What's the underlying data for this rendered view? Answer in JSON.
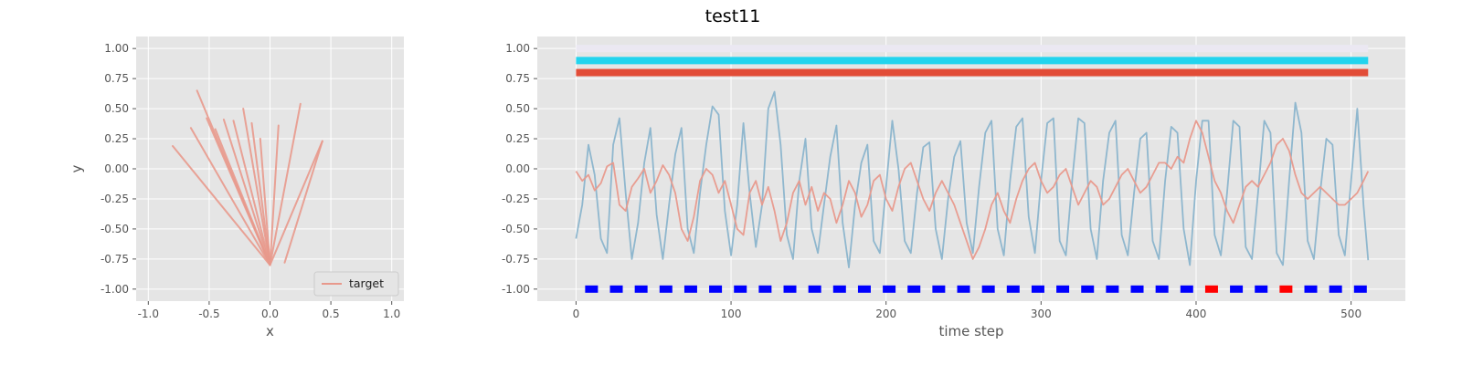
{
  "title": "test11",
  "style": {
    "axes_bg": "#e5e5e5",
    "grid_color": "#ffffff",
    "tick_color": "#555555",
    "target_color": "#e8998c",
    "signal_color": "#8ab4cc"
  },
  "chart_data": [
    {
      "type": "line",
      "panel": "left",
      "xlabel": "x",
      "ylabel": "y",
      "xlim": [
        -1.1,
        1.1
      ],
      "ylim": [
        -1.1,
        1.1
      ],
      "xticks": [
        -1.0,
        -0.5,
        0.0,
        0.5,
        1.0
      ],
      "yticks": [
        -1.0,
        -0.75,
        -0.5,
        -0.25,
        0.0,
        0.25,
        0.5,
        0.75,
        1.0
      ],
      "grid": true,
      "legend": {
        "placement": "lower-right",
        "entries": [
          "target"
        ]
      },
      "series": [
        {
          "name": "target",
          "color": "#e8998c",
          "description": "trajectory fan from near (0,-0.8) out to upper-left and upper-right",
          "strokes": [
            [
              [
                0.0,
                -0.8
              ],
              [
                -0.8,
                0.19
              ]
            ],
            [
              [
                0.0,
                -0.8
              ],
              [
                -0.65,
                0.34
              ]
            ],
            [
              [
                0.0,
                -0.8
              ],
              [
                -0.6,
                0.65
              ]
            ],
            [
              [
                0.0,
                -0.8
              ],
              [
                -0.52,
                0.42
              ]
            ],
            [
              [
                0.0,
                -0.8
              ],
              [
                -0.45,
                0.33
              ]
            ],
            [
              [
                0.0,
                -0.8
              ],
              [
                -0.38,
                0.41
              ]
            ],
            [
              [
                0.0,
                -0.8
              ],
              [
                -0.3,
                0.4
              ]
            ],
            [
              [
                0.0,
                -0.8
              ],
              [
                -0.22,
                0.5
              ]
            ],
            [
              [
                0.0,
                -0.8
              ],
              [
                -0.15,
                0.38
              ]
            ],
            [
              [
                0.0,
                -0.8
              ],
              [
                -0.08,
                0.25
              ]
            ],
            [
              [
                0.0,
                -0.8
              ],
              [
                0.07,
                0.36
              ]
            ],
            [
              [
                0.0,
                -0.8
              ],
              [
                0.25,
                0.54
              ]
            ],
            [
              [
                0.0,
                -0.8
              ],
              [
                0.43,
                0.23
              ]
            ],
            [
              [
                0.12,
                -0.78
              ],
              [
                0.43,
                0.23
              ]
            ]
          ]
        }
      ]
    },
    {
      "type": "line",
      "panel": "right",
      "xlabel": "time step",
      "ylabel": "",
      "xlim": [
        -25,
        535
      ],
      "ylim": [
        -1.1,
        1.1
      ],
      "xticks": [
        0,
        100,
        200,
        300,
        400,
        500
      ],
      "yticks": [
        -1.0,
        -0.75,
        -0.5,
        -0.25,
        0.0,
        0.25,
        0.5,
        0.75,
        1.0
      ],
      "grid": true,
      "bands": [
        {
          "y": 1.0,
          "x0": 0,
          "x1": 511,
          "color": "#ebe8f2"
        },
        {
          "y": 0.9,
          "x0": 0,
          "x1": 511,
          "color": "#22d4ee"
        },
        {
          "y": 0.8,
          "x0": 0,
          "x1": 511,
          "color": "#e24d38"
        }
      ],
      "markers": {
        "y": -1.0,
        "x": [
          10,
          26,
          42,
          58,
          74,
          90,
          106,
          122,
          138,
          154,
          170,
          186,
          202,
          218,
          234,
          250,
          266,
          282,
          298,
          314,
          330,
          346,
          362,
          378,
          394,
          410,
          426,
          442,
          458,
          474,
          490,
          506
        ],
        "colors": [
          "#0000ff",
          "#0000ff",
          "#0000ff",
          "#0000ff",
          "#0000ff",
          "#0000ff",
          "#0000ff",
          "#0000ff",
          "#0000ff",
          "#0000ff",
          "#0000ff",
          "#0000ff",
          "#0000ff",
          "#0000ff",
          "#0000ff",
          "#0000ff",
          "#0000ff",
          "#0000ff",
          "#0000ff",
          "#0000ff",
          "#0000ff",
          "#0000ff",
          "#0000ff",
          "#0000ff",
          "#0000ff",
          "#ff0000",
          "#0000ff",
          "#0000ff",
          "#ff0000",
          "#0000ff",
          "#0000ff",
          "#0000ff"
        ]
      },
      "series": [
        {
          "name": "",
          "color": "#8ab4cc",
          "x": [
            0,
            4,
            8,
            12,
            16,
            20,
            24,
            28,
            32,
            36,
            40,
            44,
            48,
            52,
            56,
            60,
            64,
            68,
            72,
            76,
            80,
            84,
            88,
            92,
            96,
            100,
            104,
            108,
            112,
            116,
            120,
            124,
            128,
            132,
            136,
            140,
            144,
            148,
            152,
            156,
            160,
            164,
            168,
            172,
            176,
            180,
            184,
            188,
            192,
            196,
            200,
            204,
            208,
            212,
            216,
            220,
            224,
            228,
            232,
            236,
            240,
            244,
            248,
            252,
            256,
            260,
            264,
            268,
            272,
            276,
            280,
            284,
            288,
            292,
            296,
            300,
            304,
            308,
            312,
            316,
            320,
            324,
            328,
            332,
            336,
            340,
            344,
            348,
            352,
            356,
            360,
            364,
            368,
            372,
            376,
            380,
            384,
            388,
            392,
            396,
            400,
            404,
            408,
            412,
            416,
            420,
            424,
            428,
            432,
            436,
            440,
            444,
            448,
            452,
            456,
            460,
            464,
            468,
            472,
            476,
            480,
            484,
            488,
            492,
            496,
            500,
            504,
            508,
            511
          ],
          "y": [
            -0.58,
            -0.3,
            0.2,
            -0.05,
            -0.58,
            -0.7,
            0.2,
            0.42,
            -0.2,
            -0.75,
            -0.45,
            0.05,
            0.34,
            -0.38,
            -0.75,
            -0.3,
            0.12,
            0.34,
            -0.5,
            -0.7,
            -0.2,
            0.2,
            0.52,
            0.45,
            -0.35,
            -0.72,
            -0.3,
            0.38,
            -0.2,
            -0.65,
            -0.3,
            0.5,
            0.64,
            0.2,
            -0.55,
            -0.75,
            -0.1,
            0.25,
            -0.5,
            -0.7,
            -0.3,
            0.1,
            0.36,
            -0.45,
            -0.82,
            -0.3,
            0.05,
            0.2,
            -0.6,
            -0.7,
            -0.15,
            0.4,
            0.0,
            -0.6,
            -0.7,
            -0.2,
            0.18,
            0.22,
            -0.5,
            -0.75,
            -0.25,
            0.1,
            0.23,
            -0.45,
            -0.7,
            -0.15,
            0.3,
            0.4,
            -0.5,
            -0.72,
            -0.1,
            0.35,
            0.42,
            -0.4,
            -0.7,
            -0.1,
            0.38,
            0.42,
            -0.6,
            -0.72,
            -0.1,
            0.42,
            0.38,
            -0.5,
            -0.75,
            -0.1,
            0.3,
            0.4,
            -0.55,
            -0.72,
            -0.2,
            0.25,
            0.3,
            -0.6,
            -0.75,
            -0.1,
            0.35,
            0.3,
            -0.5,
            -0.8,
            -0.1,
            0.4,
            0.4,
            -0.55,
            -0.72,
            -0.2,
            0.4,
            0.35,
            -0.65,
            -0.75,
            -0.2,
            0.4,
            0.3,
            -0.7,
            -0.8,
            -0.1,
            0.55,
            0.3,
            -0.6,
            -0.75,
            -0.2,
            0.25,
            0.2,
            -0.55,
            -0.72,
            -0.1,
            0.5,
            -0.3,
            -0.76
          ]
        },
        {
          "name": "",
          "color": "#e8998c",
          "x": [
            0,
            4,
            8,
            12,
            16,
            20,
            24,
            28,
            32,
            36,
            40,
            44,
            48,
            52,
            56,
            60,
            64,
            68,
            72,
            76,
            80,
            84,
            88,
            92,
            96,
            100,
            104,
            108,
            112,
            116,
            120,
            124,
            128,
            132,
            136,
            140,
            144,
            148,
            152,
            156,
            160,
            164,
            168,
            172,
            176,
            180,
            184,
            188,
            192,
            196,
            200,
            204,
            208,
            212,
            216,
            220,
            224,
            228,
            232,
            236,
            240,
            244,
            248,
            252,
            256,
            260,
            264,
            268,
            272,
            276,
            280,
            284,
            288,
            292,
            296,
            300,
            304,
            308,
            312,
            316,
            320,
            324,
            328,
            332,
            336,
            340,
            344,
            348,
            352,
            356,
            360,
            364,
            368,
            372,
            376,
            380,
            384,
            388,
            392,
            396,
            400,
            404,
            408,
            412,
            416,
            420,
            424,
            428,
            432,
            436,
            440,
            444,
            448,
            452,
            456,
            460,
            464,
            468,
            472,
            476,
            480,
            484,
            488,
            492,
            496,
            500,
            504,
            508,
            511
          ],
          "y": [
            -0.02,
            -0.1,
            -0.05,
            -0.18,
            -0.12,
            0.02,
            0.05,
            -0.3,
            -0.35,
            -0.15,
            -0.08,
            0.0,
            -0.2,
            -0.1,
            0.03,
            -0.05,
            -0.2,
            -0.5,
            -0.6,
            -0.4,
            -0.1,
            0.0,
            -0.05,
            -0.2,
            -0.1,
            -0.3,
            -0.5,
            -0.55,
            -0.2,
            -0.1,
            -0.3,
            -0.15,
            -0.35,
            -0.6,
            -0.45,
            -0.2,
            -0.1,
            -0.3,
            -0.15,
            -0.35,
            -0.2,
            -0.25,
            -0.45,
            -0.3,
            -0.1,
            -0.2,
            -0.4,
            -0.3,
            -0.1,
            -0.05,
            -0.25,
            -0.35,
            -0.15,
            0.0,
            0.05,
            -0.1,
            -0.25,
            -0.35,
            -0.2,
            -0.1,
            -0.2,
            -0.3,
            -0.45,
            -0.6,
            -0.75,
            -0.65,
            -0.5,
            -0.3,
            -0.2,
            -0.35,
            -0.45,
            -0.25,
            -0.1,
            0.0,
            0.05,
            -0.1,
            -0.2,
            -0.15,
            -0.05,
            0.0,
            -0.15,
            -0.3,
            -0.2,
            -0.1,
            -0.15,
            -0.3,
            -0.25,
            -0.15,
            -0.05,
            0.0,
            -0.1,
            -0.2,
            -0.15,
            -0.05,
            0.05,
            0.05,
            0.0,
            0.1,
            0.05,
            0.25,
            0.4,
            0.3,
            0.1,
            -0.1,
            -0.2,
            -0.35,
            -0.45,
            -0.3,
            -0.15,
            -0.1,
            -0.15,
            -0.05,
            0.05,
            0.2,
            0.25,
            0.15,
            -0.05,
            -0.2,
            -0.25,
            -0.2,
            -0.15,
            -0.2,
            -0.25,
            -0.3,
            -0.3,
            -0.25,
            -0.2,
            -0.1,
            -0.02
          ]
        }
      ]
    }
  ]
}
